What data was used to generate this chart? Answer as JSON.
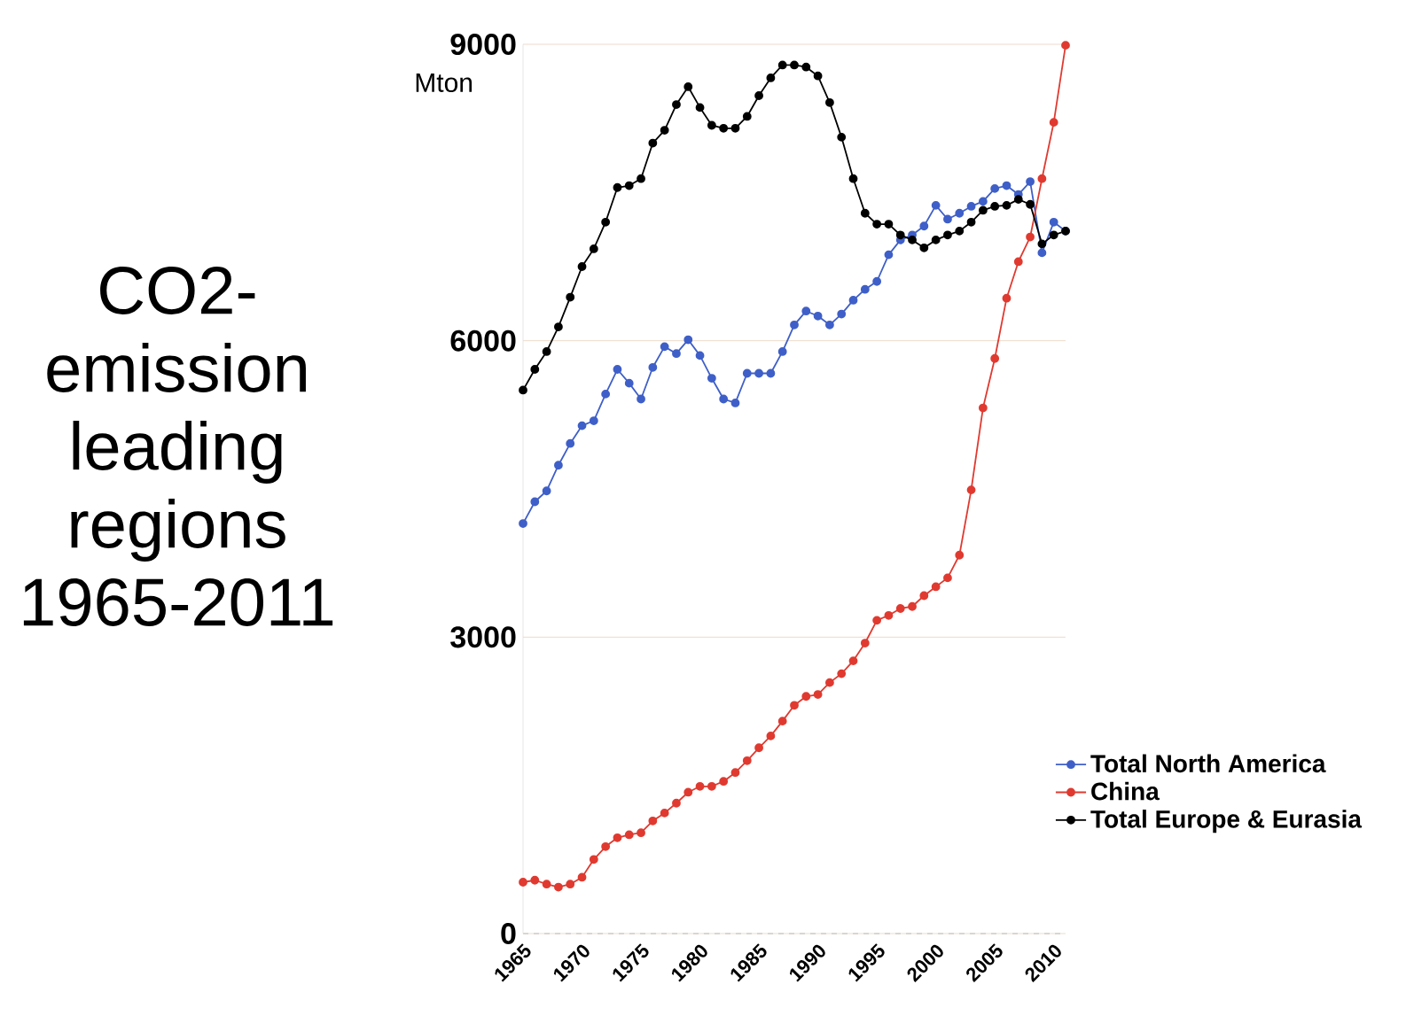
{
  "chart_data": {
    "type": "line",
    "title": "CO2-emission leading regions 1965-2011",
    "ylabel": "Mton",
    "x": [
      1965,
      1966,
      1967,
      1968,
      1969,
      1970,
      1971,
      1972,
      1973,
      1974,
      1975,
      1976,
      1977,
      1978,
      1979,
      1980,
      1981,
      1982,
      1983,
      1984,
      1985,
      1986,
      1987,
      1988,
      1989,
      1990,
      1991,
      1992,
      1993,
      1994,
      1995,
      1996,
      1997,
      1998,
      1999,
      2000,
      2001,
      2002,
      2003,
      2004,
      2005,
      2006,
      2007,
      2008,
      2009,
      2010,
      2011
    ],
    "series": [
      {
        "name": "Total North America",
        "color": "#3f5fc8",
        "values": [
          4150,
          4370,
          4480,
          4740,
          4960,
          5140,
          5190,
          5460,
          5710,
          5570,
          5410,
          5730,
          5940,
          5870,
          6010,
          5850,
          5620,
          5410,
          5370,
          5670,
          5670,
          5670,
          5890,
          6160,
          6300,
          6250,
          6160,
          6270,
          6410,
          6520,
          6600,
          6870,
          7020,
          7070,
          7160,
          7370,
          7230,
          7290,
          7360,
          7410,
          7540,
          7570,
          7480,
          7610,
          6890,
          7200,
          7110
        ]
      },
      {
        "name": "China",
        "color": "#e03a30",
        "values": [
          520,
          540,
          500,
          470,
          500,
          570,
          750,
          880,
          970,
          1000,
          1020,
          1140,
          1220,
          1320,
          1430,
          1490,
          1490,
          1540,
          1630,
          1750,
          1880,
          2000,
          2150,
          2310,
          2400,
          2420,
          2540,
          2630,
          2760,
          2940,
          3170,
          3220,
          3290,
          3310,
          3420,
          3510,
          3600,
          3830,
          4490,
          5320,
          5820,
          6430,
          6800,
          7050,
          7640,
          8210,
          8990
        ]
      },
      {
        "name": "Total Europe & Eurasia",
        "color": "#000000",
        "values": [
          5500,
          5710,
          5890,
          6140,
          6440,
          6750,
          6930,
          7200,
          7550,
          7570,
          7640,
          8000,
          8130,
          8390,
          8570,
          8360,
          8180,
          8150,
          8150,
          8270,
          8480,
          8660,
          8790,
          8790,
          8770,
          8680,
          8410,
          8060,
          7640,
          7290,
          7180,
          7180,
          7070,
          7020,
          6940,
          7020,
          7070,
          7110,
          7200,
          7320,
          7360,
          7370,
          7430,
          7380,
          6980,
          7070,
          7110
        ]
      }
    ],
    "xlim": [
      1965,
      2011
    ],
    "xticks": [
      1965,
      1970,
      1975,
      1980,
      1985,
      1990,
      1995,
      2000,
      2005,
      2010
    ],
    "ylim": [
      0,
      9000
    ],
    "yticks": [
      0,
      3000,
      6000,
      9000
    ],
    "grid": "y",
    "legend": "bottom right",
    "marker": "circle",
    "line_style": "solid"
  }
}
